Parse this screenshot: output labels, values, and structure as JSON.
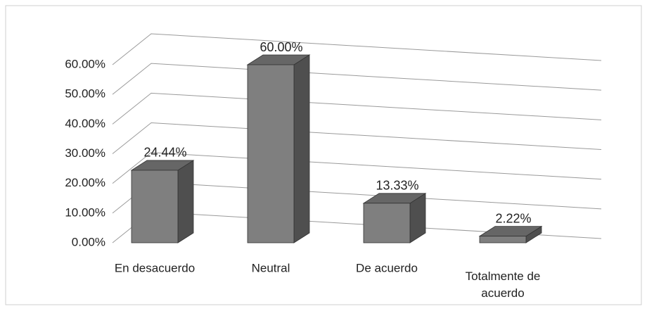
{
  "chart_data": {
    "type": "bar3d",
    "categories": [
      "En desacuerdo",
      "Neutral",
      "De acuerdo",
      "Totalmente de acuerdo"
    ],
    "values": [
      24.44,
      60,
      13.33,
      2.22
    ],
    "value_labels": [
      "24.44%",
      "60.00%",
      "13.33%",
      "2.22%"
    ],
    "color": "#7f7f7f",
    "ylim": [
      0,
      60
    ],
    "yticks": [
      {
        "value": 0,
        "label": "0.00%"
      },
      {
        "value": 10,
        "label": "10.00%"
      },
      {
        "value": 20,
        "label": "20.00%"
      },
      {
        "value": 30,
        "label": "30.00%"
      },
      {
        "value": 40,
        "label": "40.00%"
      },
      {
        "value": 50,
        "label": "50.00%"
      },
      {
        "value": 60,
        "label": "60.00%"
      }
    ],
    "grid": true
  }
}
